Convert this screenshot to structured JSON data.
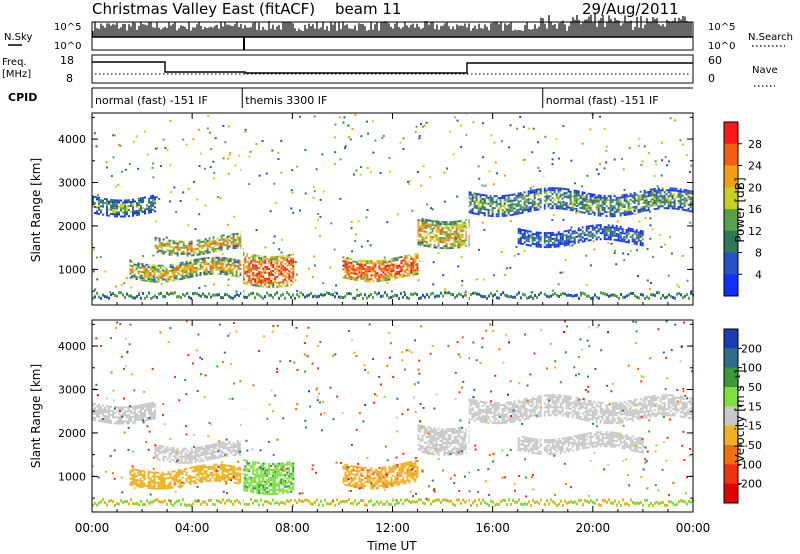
{
  "header": {
    "title": "Christmas Valley East (fitACF)",
    "beam": "beam 11",
    "date": "29/Aug/2011"
  },
  "status_panels": {
    "nsky_label": "N.Sky",
    "nsearch_label": "N.Search",
    "freq_label": "Freq.",
    "freq_unit": "[MHz]",
    "nave_label": "Nave",
    "cpid_label": "CPID",
    "left_ticks_top": [
      "10^5",
      "10^0"
    ],
    "right_ticks_top": [
      "10^5",
      "10^0"
    ],
    "left_ticks_freq": [
      "18",
      "8"
    ],
    "right_ticks_nave": [
      "60",
      "0"
    ]
  },
  "cpid_segments": [
    {
      "label": "normal (fast) -151 IF",
      "start_hour": 0,
      "end_hour": 6
    },
    {
      "label": "themis 3300 IF",
      "start_hour": 6,
      "end_hour": 18
    },
    {
      "label": "normal (fast) -151 IF",
      "start_hour": 18,
      "end_hour": 24
    }
  ],
  "chart_data": [
    {
      "type": "heatmap",
      "name": "power",
      "ylabel": "Slant Range [km]",
      "xlabel": "Time UT",
      "xlim": [
        0,
        24
      ],
      "ylim": [
        180,
        4600
      ],
      "x_ticks": [
        "00:00",
        "04:00",
        "08:00",
        "12:00",
        "16:00",
        "20:00",
        "00:00"
      ],
      "y_ticks": [
        1000,
        2000,
        3000,
        4000
      ],
      "colorbar": {
        "label": "Power [dB]",
        "ticks": [
          "4",
          "8",
          "12",
          "16",
          "20",
          "24",
          "28"
        ],
        "colors": [
          "#1030ff",
          "#2850c8",
          "#2e7a58",
          "#5aa04a",
          "#c8d020",
          "#f0a010",
          "#f06010",
          "#ff1818"
        ]
      },
      "echo_regions": [
        {
          "t0": 0.0,
          "t1": 2.5,
          "r0": 2300,
          "r1": 2700,
          "level": 12
        },
        {
          "t0": 2.5,
          "t1": 6.0,
          "r0": 1400,
          "r1": 1750,
          "level": 20
        },
        {
          "t0": 1.5,
          "t1": 6.0,
          "r0": 800,
          "r1": 1200,
          "level": 20
        },
        {
          "t0": 6.0,
          "t1": 8.0,
          "r0": 700,
          "r1": 1400,
          "level": 26
        },
        {
          "t0": 10.0,
          "t1": 13.0,
          "r0": 800,
          "r1": 1300,
          "level": 26
        },
        {
          "t0": 13.0,
          "t1": 15.0,
          "r0": 1600,
          "r1": 2200,
          "level": 20
        },
        {
          "t0": 15.0,
          "t1": 24.0,
          "r0": 2300,
          "r1": 2800,
          "level": 12
        },
        {
          "t0": 17.0,
          "t1": 22.0,
          "r0": 1600,
          "r1": 1950,
          "level": 8
        }
      ]
    },
    {
      "type": "heatmap",
      "name": "velocity",
      "ylabel": "Slant Range [km]",
      "xlabel": "Time UT",
      "xlim": [
        0,
        24
      ],
      "ylim": [
        180,
        4600
      ],
      "x_ticks": [
        "00:00",
        "04:00",
        "08:00",
        "12:00",
        "16:00",
        "20:00",
        "00:00"
      ],
      "y_ticks": [
        1000,
        2000,
        3000,
        4000
      ],
      "colorbar": {
        "label": "Velocity [m s⁻¹]",
        "ticks": [
          "200",
          "100",
          "50",
          "15",
          "-15",
          "-50",
          "-100",
          "-200"
        ],
        "colors": [
          "#1c3cb4",
          "#2e6e8c",
          "#3a9a3a",
          "#7ee040",
          "#c8c8c8",
          "#f0b020",
          "#f07010",
          "#f03010",
          "#e00000"
        ]
      },
      "echo_regions": [
        {
          "t0": 0.0,
          "t1": 2.5,
          "r0": 2300,
          "r1": 2700,
          "level": 0
        },
        {
          "t0": 2.5,
          "t1": 6.0,
          "r0": 1400,
          "r1": 1750,
          "level": 0
        },
        {
          "t0": 1.5,
          "t1": 6.0,
          "r0": 800,
          "r1": 1200,
          "level": -30
        },
        {
          "t0": 6.0,
          "t1": 8.0,
          "r0": 700,
          "r1": 1400,
          "level": 40
        },
        {
          "t0": 10.0,
          "t1": 13.0,
          "r0": 800,
          "r1": 1300,
          "level": -40
        },
        {
          "t0": 13.0,
          "t1": 15.0,
          "r0": 1600,
          "r1": 2200,
          "level": 0
        },
        {
          "t0": 15.0,
          "t1": 24.0,
          "r0": 2300,
          "r1": 2800,
          "level": 0
        },
        {
          "t0": 17.0,
          "t1": 22.0,
          "r0": 1600,
          "r1": 1950,
          "level": 0
        }
      ]
    }
  ]
}
